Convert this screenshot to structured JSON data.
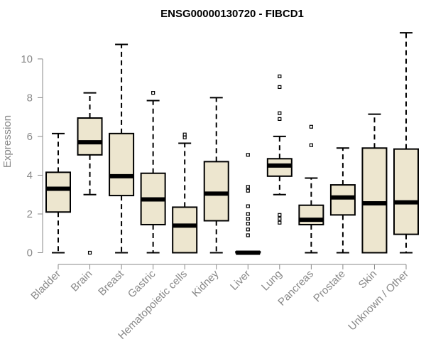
{
  "chart_data": {
    "type": "boxplot",
    "title": "ENSG00000130720 - FIBCD1",
    "xlabel": "",
    "ylabel": "Expression",
    "ylim": [
      0,
      11.5
    ],
    "yticks": [
      0,
      2,
      4,
      6,
      8,
      10
    ],
    "grid": false,
    "legend": "none",
    "colors": {
      "box_fill": "#ede6cf",
      "box_stroke": "#000000",
      "median": "#000000",
      "axis": "#888888",
      "tick_label": "#888888",
      "title": "#000000"
    },
    "categories": [
      "Bladder",
      "Brain",
      "Breast",
      "Gastric",
      "Hematopoietic cells",
      "Kidney",
      "Liver",
      "Lung",
      "Pancreas",
      "Prostate",
      "Skin",
      "Unknown / Other"
    ],
    "boxes": [
      {
        "category": "Bladder",
        "min": 0,
        "q1": 2.1,
        "median": 3.3,
        "q3": 4.15,
        "max": 6.15,
        "outliers": []
      },
      {
        "category": "Brain",
        "min": 3.0,
        "q1": 5.05,
        "median": 5.7,
        "q3": 6.95,
        "max": 8.25,
        "outliers": [
          0
        ]
      },
      {
        "category": "Breast",
        "min": 0,
        "q1": 2.95,
        "median": 3.95,
        "q3": 6.15,
        "max": 10.75,
        "outliers": []
      },
      {
        "category": "Gastric",
        "min": 0,
        "q1": 1.45,
        "median": 2.75,
        "q3": 4.1,
        "max": 7.85,
        "outliers": [
          8.25
        ]
      },
      {
        "category": "Hematopoietic cells",
        "min": 0,
        "q1": 0,
        "median": 1.4,
        "q3": 2.35,
        "max": 5.65,
        "outliers": [
          5.95,
          6.1
        ]
      },
      {
        "category": "Kidney",
        "min": 0,
        "q1": 1.65,
        "median": 3.05,
        "q3": 4.7,
        "max": 8.0,
        "outliers": []
      },
      {
        "category": "Liver",
        "min": 0,
        "q1": 0,
        "median": 0,
        "q3": 0.05,
        "max": 0.05,
        "outliers": [
          0.9,
          1.2,
          1.5,
          1.75,
          2.0,
          2.4,
          3.2,
          3.4,
          5.05
        ]
      },
      {
        "category": "Lung",
        "min": 3.0,
        "q1": 3.95,
        "median": 4.5,
        "q3": 4.85,
        "max": 6.0,
        "outliers": [
          1.55,
          1.75,
          1.95,
          6.9,
          7.2,
          8.55,
          9.1
        ]
      },
      {
        "category": "Pancreas",
        "min": 0,
        "q1": 1.45,
        "median": 1.7,
        "q3": 2.45,
        "max": 3.85,
        "outliers": [
          5.55,
          6.5
        ]
      },
      {
        "category": "Prostate",
        "min": 0,
        "q1": 1.95,
        "median": 2.85,
        "q3": 3.5,
        "max": 5.4,
        "outliers": []
      },
      {
        "category": "Skin",
        "min": 0,
        "q1": 0,
        "median": 2.55,
        "q3": 5.4,
        "max": 7.15,
        "outliers": []
      },
      {
        "category": "Unknown / Other",
        "min": 0,
        "q1": 0.95,
        "median": 2.6,
        "q3": 5.35,
        "max": 11.35,
        "outliers": []
      }
    ]
  }
}
